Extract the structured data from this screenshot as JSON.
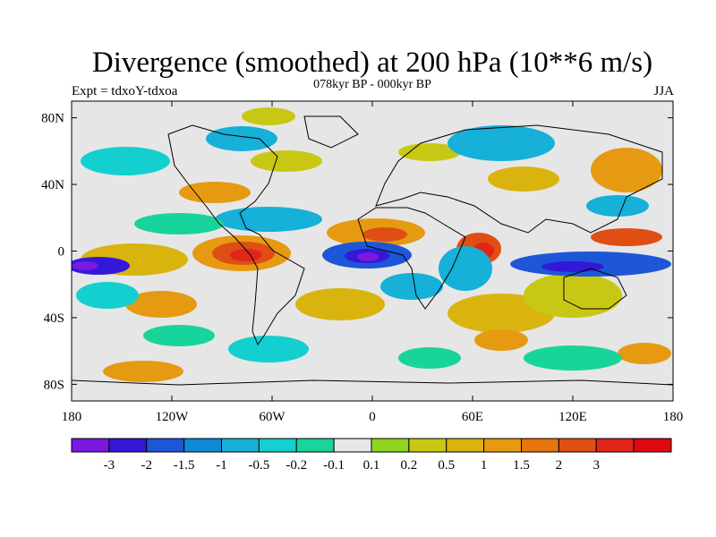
{
  "title": "Divergence (smoothed) at 200 hPa (10**6 m/s)",
  "subtitle": "078kyr BP - 000kyr BP",
  "left_label": "Expt = tdxoY-tdxoa",
  "right_label": "JJA",
  "map": {
    "lon_range": [
      -180,
      180
    ],
    "lat_range": [
      -90,
      90
    ],
    "x_tick_labels": [
      "180",
      "120W",
      "60W",
      "0",
      "60E",
      "120E",
      "180"
    ],
    "y_tick_labels": [
      "80N",
      "40N",
      "0",
      "40S",
      "80S"
    ]
  },
  "colorbar": {
    "colors": [
      "#7a18e0",
      "#3418d8",
      "#1e56d8",
      "#0f8ad8",
      "#16b0d8",
      "#14cfcf",
      "#19d49a",
      "#e6e6e6",
      "#8fd41e",
      "#c8c814",
      "#d9b40f",
      "#e59a12",
      "#e6740f",
      "#e04e14",
      "#e0261a",
      "#e00810"
    ],
    "labels": [
      "-3",
      "-2",
      "-1.5",
      "-1",
      "-0.5",
      "-0.2",
      "-0.1",
      "0.1",
      "0.2",
      "0.5",
      "1",
      "1.5",
      "2",
      "3"
    ]
  }
}
